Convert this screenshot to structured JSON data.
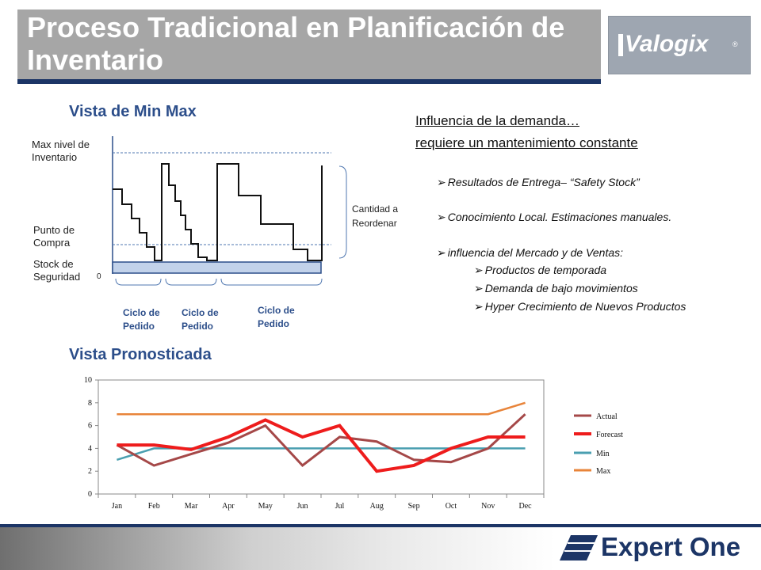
{
  "header": {
    "title": "Proceso Tradicional en Planificación de Inventario",
    "logo_text": "Valogix",
    "logo_registered": "®"
  },
  "minmax": {
    "heading": "Vista de Min Max",
    "max_label": "Max nivel de Inventario",
    "reorder_point_label": "Punto de Compra",
    "safety_label": "Stock de Seguridad",
    "zero_label": "0",
    "reorder_qty_label": "Cantidad a Reordenar",
    "cycles": [
      "Ciclo de Pedido",
      "Ciclo de Pedido",
      "Ciclo de Pedido"
    ]
  },
  "influence": {
    "line1": "Influencia de la demanda…",
    "line2": "requiere un mantenimiento constante",
    "bullets": [
      "Resultados de Entrega– “Safety Stock”",
      "Conocimiento Local. Estimaciones manuales.",
      "influencia del Mercado y de Ventas:"
    ],
    "sub_bullets": [
      "Productos de temporada",
      "Demanda de bajo movimientos",
      "Hyper Crecimiento de Nuevos Productos"
    ]
  },
  "forecast": {
    "heading": "Vista Pronosticada"
  },
  "chart_data": {
    "type": "line",
    "categories": [
      "Jan",
      "Feb",
      "Mar",
      "Apr",
      "May",
      "Jun",
      "Jul",
      "Aug",
      "Sep",
      "Oct",
      "Nov",
      "Dec"
    ],
    "series": [
      {
        "name": "Actual",
        "values": [
          4.3,
          2.5,
          3.5,
          4.5,
          6.0,
          2.5,
          5.0,
          4.6,
          3.0,
          2.8,
          4.0,
          7.0
        ],
        "color": "#a54848"
      },
      {
        "name": "Forecast",
        "values": [
          4.3,
          4.3,
          3.9,
          5.0,
          6.5,
          5.0,
          6.0,
          2.0,
          2.5,
          4.0,
          5.0,
          5.0
        ],
        "color": "#ee1c1c"
      },
      {
        "name": "Min",
        "values": [
          3.0,
          4.0,
          4.0,
          4.0,
          4.0,
          4.0,
          4.0,
          4.0,
          4.0,
          4.0,
          4.0,
          4.0
        ],
        "color": "#4a9fb0"
      },
      {
        "name": "Max",
        "values": [
          7.0,
          7.0,
          7.0,
          7.0,
          7.0,
          7.0,
          7.0,
          7.0,
          7.0,
          7.0,
          7.0,
          8.0
        ],
        "color": "#e8843a"
      }
    ],
    "yticks": [
      0,
      2,
      4,
      6,
      8,
      10
    ],
    "ylim": [
      0,
      10
    ],
    "grid": false,
    "legend_position": "right"
  },
  "footer": {
    "brand": "Expert One",
    "brand_color": "#1c3566"
  }
}
